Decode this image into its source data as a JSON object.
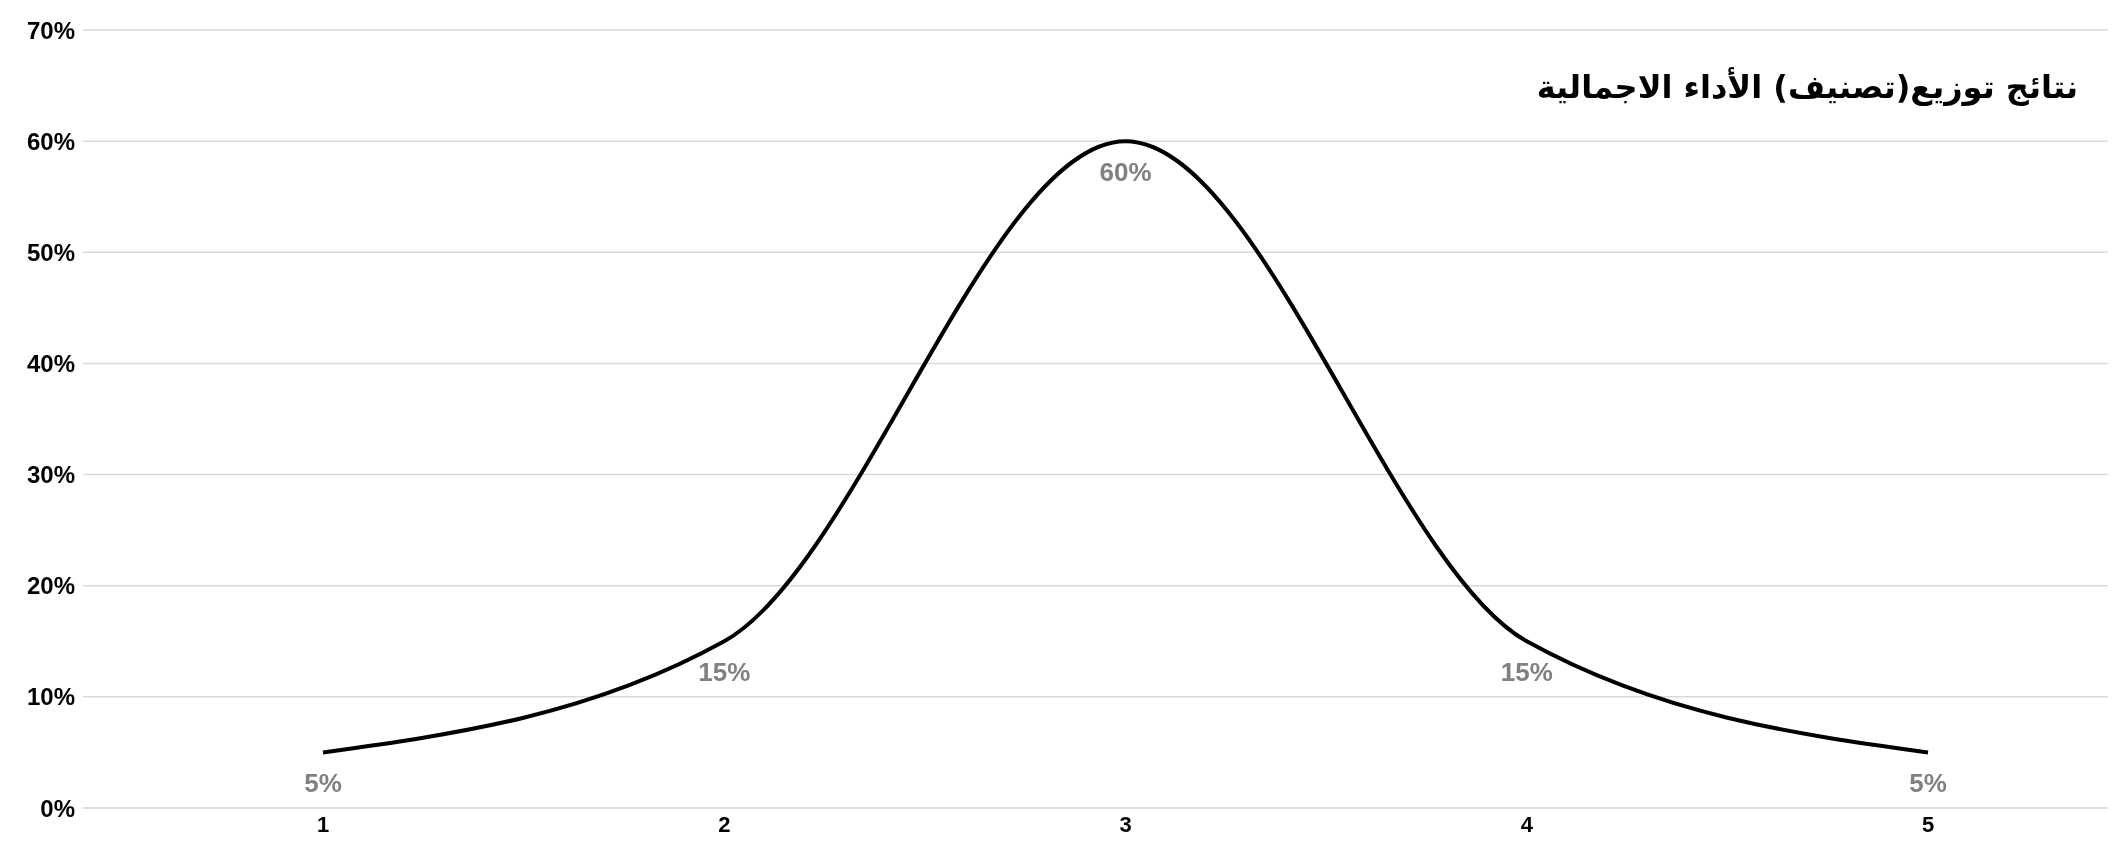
{
  "chart_data": {
    "type": "line",
    "title": "نتائج توزيع(تصنيف) الأداء الاجمالية",
    "categories": [
      "1",
      "2",
      "3",
      "4",
      "5"
    ],
    "series": [
      {
        "color": "#000000",
        "values": [
          5,
          15,
          60,
          15,
          5
        ],
        "value_labels": [
          "5%",
          "15%",
          "60%",
          "15%",
          "5%"
        ]
      }
    ],
    "ylim": [
      0,
      70
    ],
    "yticks": [
      {
        "value": 0,
        "label": "0%"
      },
      {
        "value": 10,
        "label": "10%"
      },
      {
        "value": 20,
        "label": "20%"
      },
      {
        "value": 30,
        "label": "30%"
      },
      {
        "value": 40,
        "label": "40%"
      },
      {
        "value": 50,
        "label": "50%"
      },
      {
        "value": 60,
        "label": "60%"
      },
      {
        "value": 70,
        "label": "70%"
      }
    ],
    "grid": "y",
    "marker": "none",
    "line_style": "solid"
  }
}
